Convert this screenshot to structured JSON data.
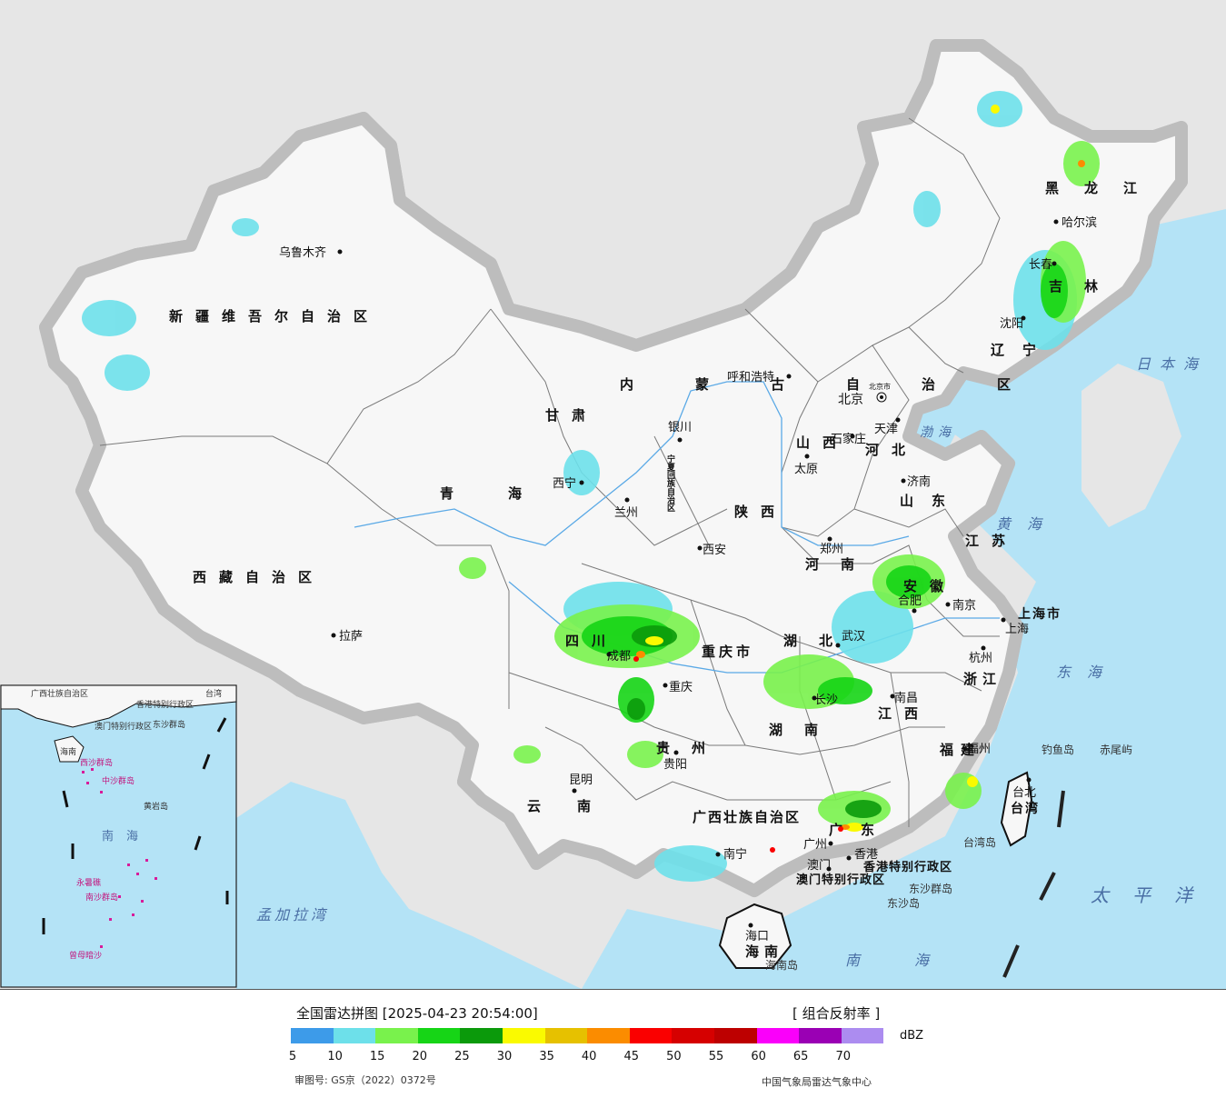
{
  "map": {
    "regions": [
      "新疆维吾尔自治区",
      "西藏自治区",
      "青海",
      "甘肃",
      "内蒙古自治区",
      "黑龙江",
      "吉林",
      "辽宁",
      "河北",
      "山西",
      "陕西",
      "山东",
      "河南",
      "江苏",
      "安徽",
      "浙江",
      "湖北",
      "湖南",
      "江西",
      "福建",
      "四川",
      "重庆市",
      "贵州",
      "云南",
      "广西壮族自治区",
      "广东",
      "海南",
      "台湾",
      "宁夏回族自治区",
      "上海市",
      "香港特别行政区",
      "澳门特别行政区"
    ],
    "cities": [
      "乌鲁木齐",
      "拉萨",
      "西宁",
      "兰州",
      "银川",
      "呼和浩特",
      "北京",
      "北京市",
      "天津",
      "石家庄",
      "太原",
      "济南",
      "郑州",
      "西安",
      "合肥",
      "南京",
      "上海",
      "杭州",
      "武汉",
      "长沙",
      "南昌",
      "福州",
      "台北",
      "成都",
      "重庆",
      "贵阳",
      "昆明",
      "南宁",
      "广州",
      "香港",
      "澳门",
      "海口",
      "沈阳",
      "长春",
      "哈尔滨"
    ],
    "seas": [
      "日本海",
      "渤海",
      "黄海",
      "东海",
      "太平洋",
      "南海",
      "孟加拉湾"
    ],
    "islands": [
      "钓鱼岛",
      "赤尾屿",
      "台湾岛",
      "东沙群岛",
      "东沙岛",
      "海南岛"
    ],
    "inset_labels": [
      "广西壮族自治区",
      "台湾",
      "香港特别行政区",
      "澳门特别行政区",
      "东沙群岛",
      "海南",
      "西沙群岛",
      "中沙群岛",
      "黄岩岛",
      "南海",
      "永暑礁",
      "南沙群岛",
      "曾母暗沙"
    ]
  },
  "legend": {
    "title": "全国雷达拼图 [2025-04-23 20:54:00]",
    "product": "[ 组合反射率 ]",
    "unit": "dBZ",
    "colors": [
      "#3d9be9",
      "#6de0ea",
      "#79f24c",
      "#16d516",
      "#0b9a0b",
      "#fafa00",
      "#e6c100",
      "#fb8c00",
      "#fa0000",
      "#d60000",
      "#bd0000",
      "#fa00fa",
      "#9a00b4",
      "#ac8cf0"
    ],
    "ticks": [
      "5",
      "10",
      "15",
      "20",
      "25",
      "30",
      "35",
      "40",
      "45",
      "50",
      "55",
      "60",
      "65",
      "70"
    ],
    "review_no": "审图号: GS京（2022）0372号",
    "source": "中国气象局雷达气象中心"
  }
}
